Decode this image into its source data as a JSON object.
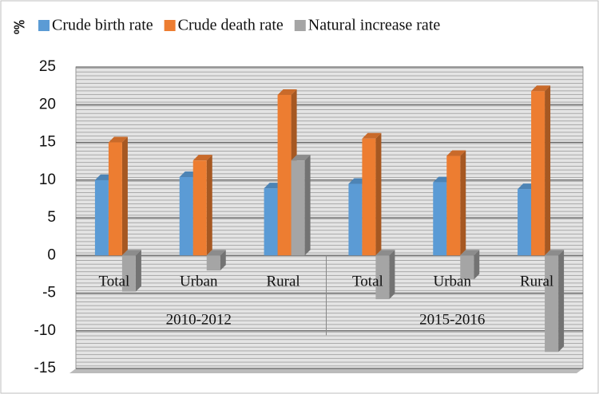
{
  "chart_data": {
    "type": "bar3d",
    "y_label": "‰",
    "categories": [
      "Total",
      "Urban",
      "Rural",
      "Total",
      "Urban",
      "Rural"
    ],
    "groups": [
      "2010-2012",
      "2015-2016"
    ],
    "series": [
      {
        "name": "Crude birth rate",
        "color": "#5b9bd5",
        "values": [
          10,
          10.4,
          8.9,
          9.5,
          9.7,
          8.8
        ]
      },
      {
        "name": "Crude death rate",
        "color": "#ed7d31",
        "values": [
          15,
          12.6,
          21.3,
          15.5,
          13.2,
          21.8
        ]
      },
      {
        "name": "Natural increase rate",
        "color": "#a5a5a5",
        "values": [
          -4.8,
          -2,
          12.6,
          -5.8,
          -3.2,
          -12.8
        ]
      }
    ],
    "ylim": [
      -15,
      25
    ],
    "yticks": [
      -15,
      -10,
      -5,
      0,
      5,
      10,
      15,
      20,
      25
    ],
    "grid": true
  }
}
